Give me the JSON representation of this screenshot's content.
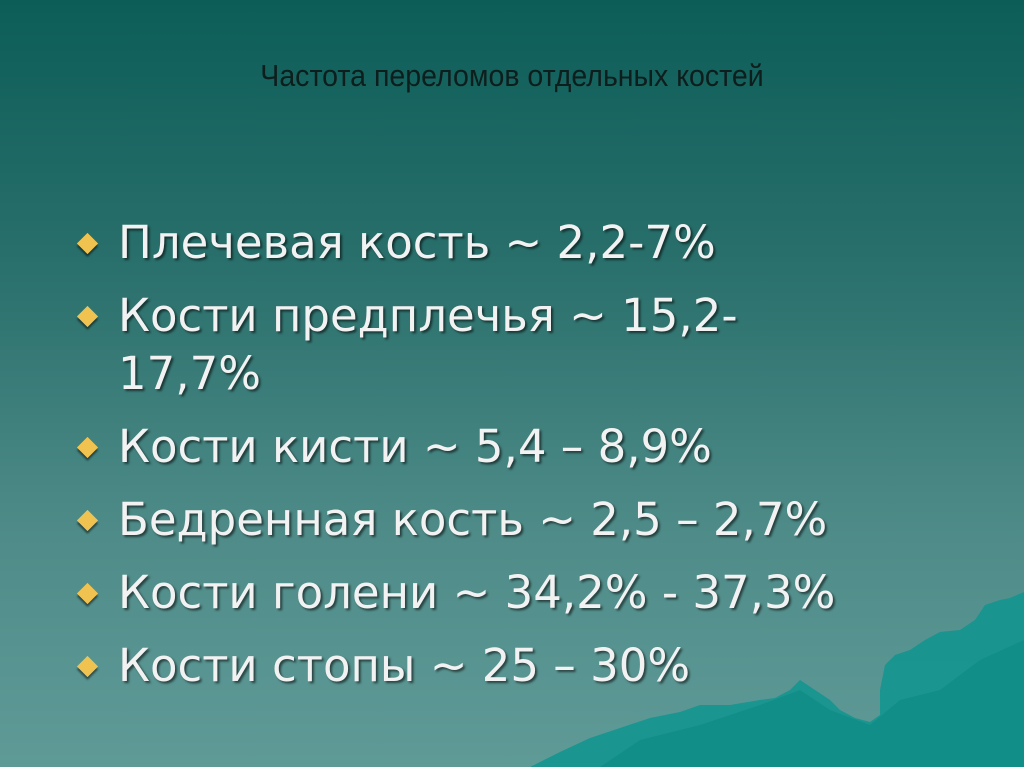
{
  "slide": {
    "title": "Частота переломов отдельных костей",
    "bullets": [
      {
        "text": "Плечевая кость ~ 2,2-7%"
      },
      {
        "text": "Кости предплечья ~ 15,2-17,7%"
      },
      {
        "text": "Кости кисти ~ 5,4 – 8,9%"
      },
      {
        "text": "Бедренная кость ~ 2,5 – 2,7%"
      },
      {
        "text": "Кости голени ~ 34,2% - 37,3%"
      },
      {
        "text": "Кости стопы ~ 25 – 30%"
      }
    ],
    "colors": {
      "bullet": "#f0c350",
      "text": "#f2f2f2",
      "title": "#0d1e1d",
      "mountains": "#0f9690"
    }
  }
}
